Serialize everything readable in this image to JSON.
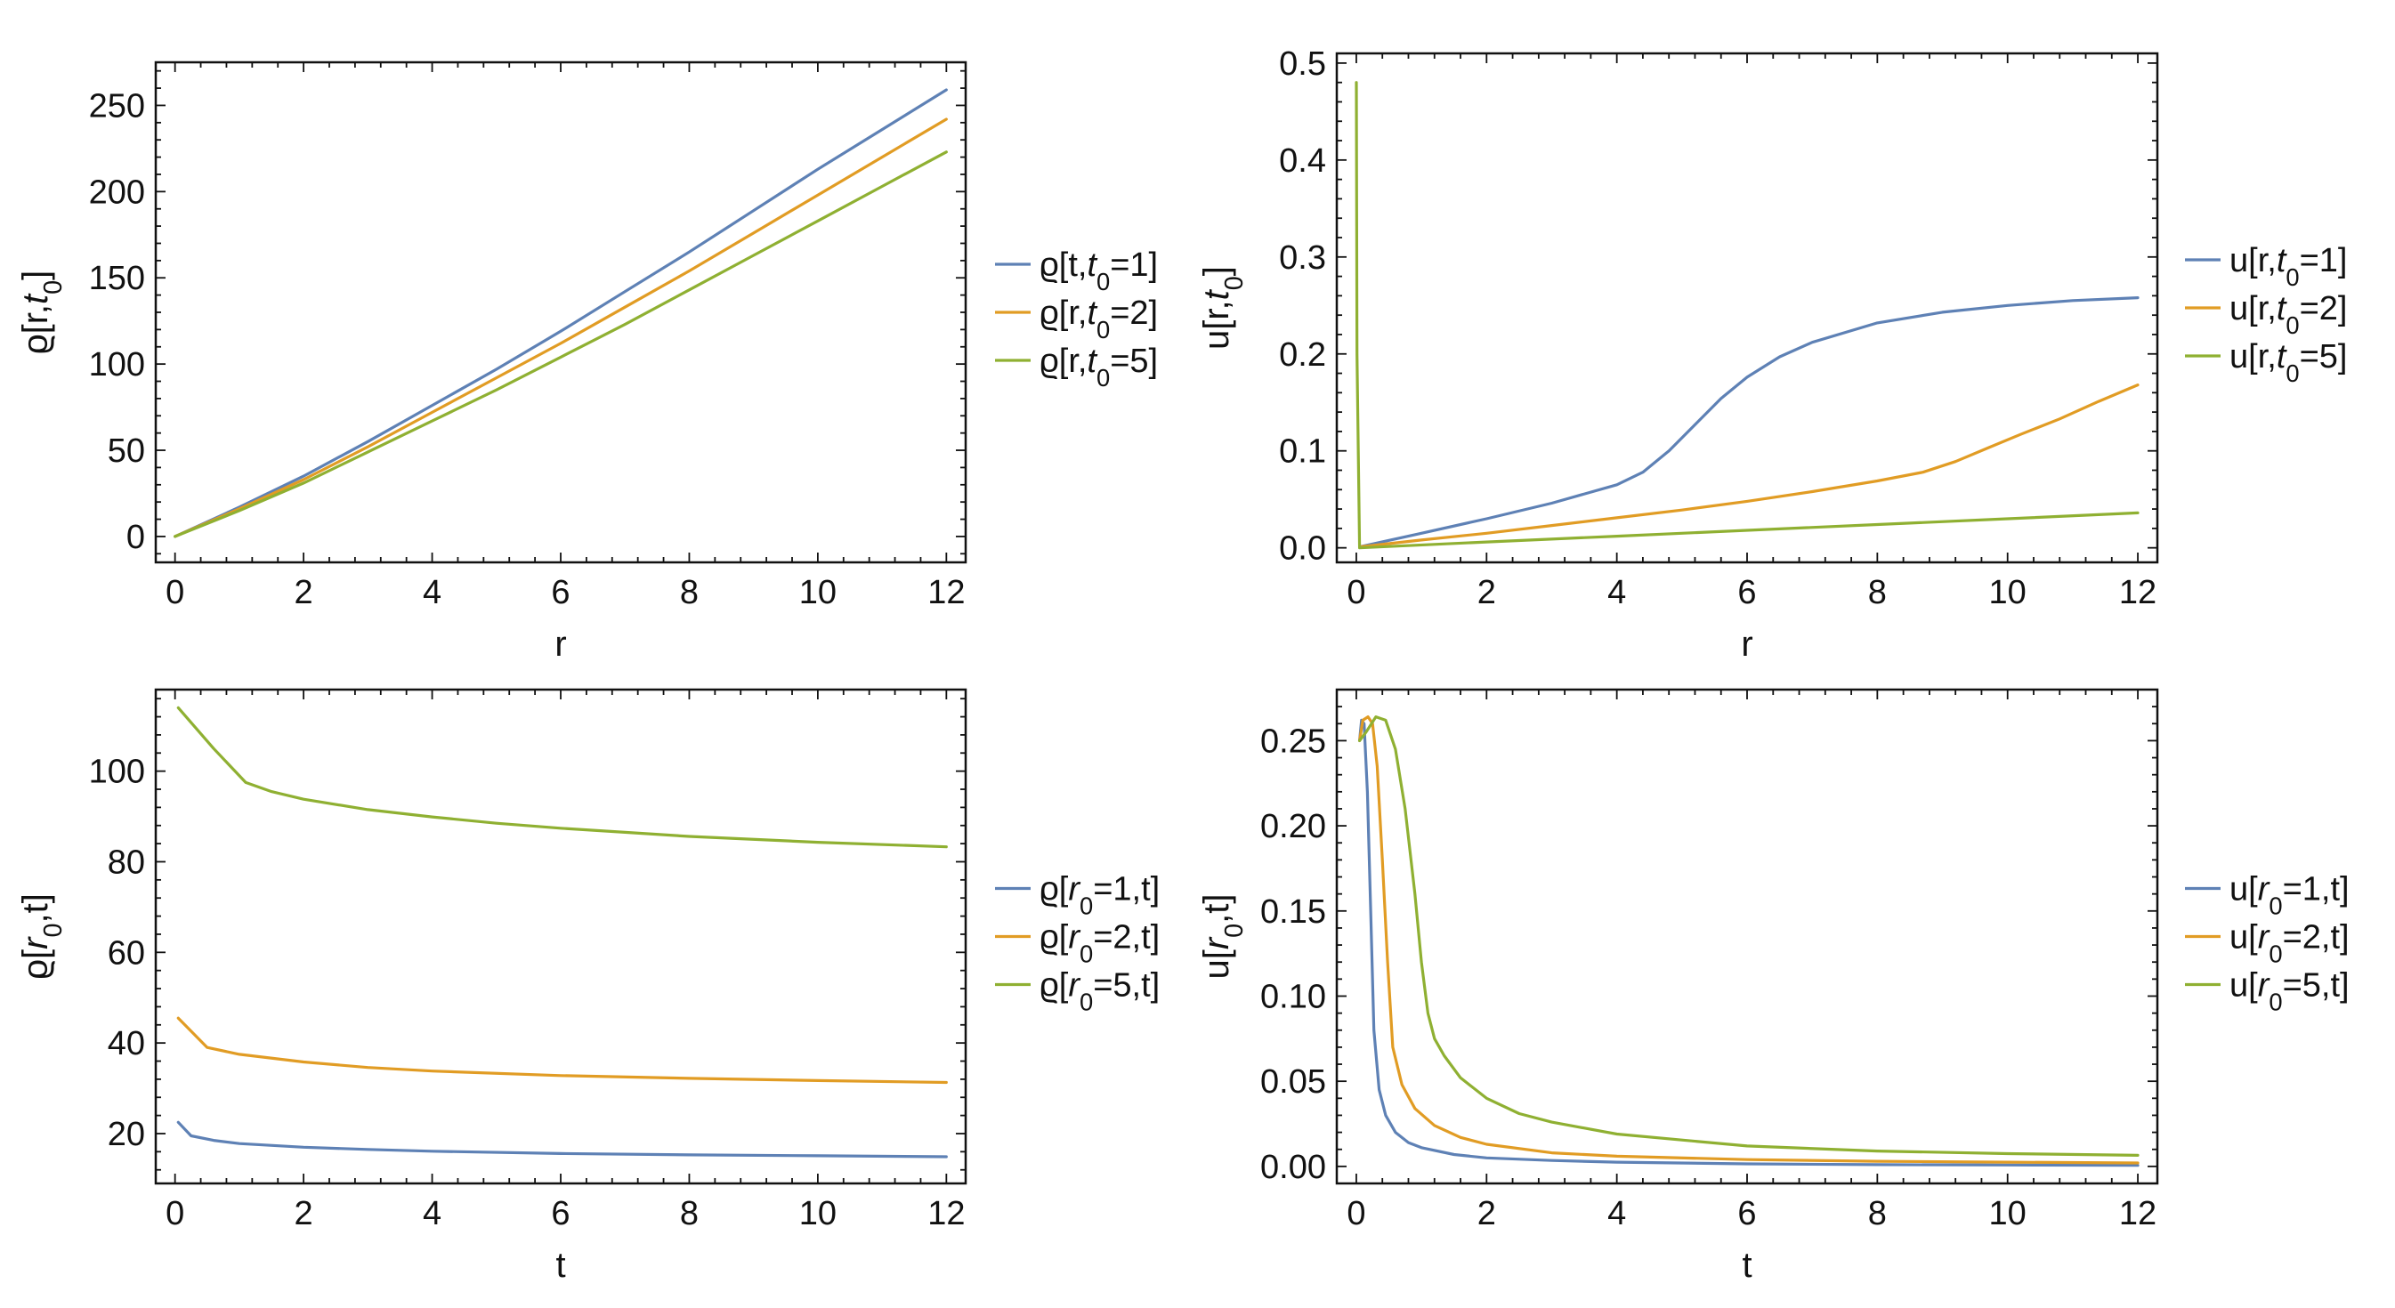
{
  "chart_data": [
    {
      "type": "line",
      "id": "rho-vs-r",
      "title": "",
      "xlabel": "r",
      "ylabel": {
        "base": "ϱ[r,",
        "var": "t",
        "sub": "0",
        "tail": "]"
      },
      "xlim": [
        -0.3,
        12.3
      ],
      "ylim": [
        -15,
        275
      ],
      "xticks": [
        0,
        2,
        4,
        6,
        8,
        10,
        12
      ],
      "xtick_labels": [
        "0",
        "2",
        "4",
        "6",
        "8",
        "10",
        "12"
      ],
      "yticks": [
        0,
        50,
        100,
        150,
        200,
        250
      ],
      "ytick_labels": [
        "0",
        "50",
        "100",
        "150",
        "200",
        "250"
      ],
      "legend": "right",
      "series": [
        {
          "name": "ϱ[t,t0=1]",
          "legend": {
            "pre": "ϱ[t,",
            "var": "t",
            "sub": "0",
            "post": "=1]"
          },
          "color": "#5E81B5",
          "x": [
            0,
            1,
            2,
            3,
            4,
            5,
            6,
            7,
            8,
            9,
            10,
            11,
            12
          ],
          "y": [
            0,
            17,
            35,
            55,
            76,
            97,
            119,
            142,
            165,
            189,
            213,
            236,
            259
          ]
        },
        {
          "name": "ϱ[r,t0=2]",
          "legend": {
            "pre": "ϱ[r,",
            "var": "t",
            "sub": "0",
            "post": "=2]"
          },
          "color": "#E19C24",
          "x": [
            0,
            1,
            2,
            3,
            4,
            5,
            6,
            7,
            8,
            9,
            10,
            11,
            12
          ],
          "y": [
            0,
            16,
            33,
            52,
            72,
            92,
            112,
            133,
            154,
            176,
            198,
            220,
            242
          ]
        },
        {
          "name": "ϱ[r,t0=5]",
          "legend": {
            "pre": "ϱ[r,",
            "var": "t",
            "sub": "0",
            "post": "=5]"
          },
          "color": "#8FB032",
          "x": [
            0,
            1,
            2,
            3,
            4,
            5,
            6,
            7,
            8,
            9,
            10,
            11,
            12
          ],
          "y": [
            0,
            15,
            31,
            49,
            67,
            85,
            104,
            123,
            143,
            163,
            183,
            203,
            223
          ]
        }
      ]
    },
    {
      "type": "line",
      "id": "u-vs-r",
      "title": "",
      "xlabel": "r",
      "ylabel": {
        "base": "u[r,",
        "var": "t",
        "sub": "0",
        "tail": "]"
      },
      "xlim": [
        -0.3,
        12.3
      ],
      "ylim": [
        -0.015,
        0.51
      ],
      "xticks": [
        0,
        2,
        4,
        6,
        8,
        10,
        12
      ],
      "xtick_labels": [
        "0",
        "2",
        "4",
        "6",
        "8",
        "10",
        "12"
      ],
      "yticks": [
        0,
        0.1,
        0.2,
        0.3,
        0.4,
        0.5
      ],
      "ytick_labels": [
        "0.0",
        "0.1",
        "0.2",
        "0.3",
        "0.4",
        "0.5"
      ],
      "legend": "right",
      "series": [
        {
          "name": "u[r,t0=1]",
          "legend": {
            "pre": "u[r,",
            "var": "t",
            "sub": "0",
            "post": "=1]"
          },
          "color": "#5E81B5",
          "x": [
            0.05,
            1,
            2,
            3,
            4,
            4.4,
            4.8,
            5.2,
            5.6,
            6,
            6.5,
            7,
            8,
            9,
            10,
            11,
            12
          ],
          "y": [
            0.001,
            0.015,
            0.03,
            0.046,
            0.065,
            0.078,
            0.1,
            0.127,
            0.154,
            0.176,
            0.197,
            0.212,
            0.232,
            0.243,
            0.25,
            0.255,
            0.258
          ]
        },
        {
          "name": "u[r,t0=2]",
          "legend": {
            "pre": "u[r,",
            "var": "t",
            "sub": "0",
            "post": "=2]"
          },
          "color": "#E19C24",
          "x": [
            0.05,
            1,
            2,
            3,
            4,
            5,
            6,
            7,
            8,
            8.7,
            9.2,
            9.7,
            10.2,
            10.8,
            11.4,
            12
          ],
          "y": [
            0.001,
            0.008,
            0.015,
            0.023,
            0.031,
            0.039,
            0.048,
            0.058,
            0.069,
            0.078,
            0.089,
            0.103,
            0.117,
            0.133,
            0.151,
            0.168
          ]
        },
        {
          "name": "u[r,t0=5]",
          "legend": {
            "pre": "u[r,",
            "var": "t",
            "sub": "0",
            "post": "=5]"
          },
          "color": "#8FB032",
          "x": [
            0.0,
            0.01,
            0.05,
            2,
            4,
            6,
            8,
            10,
            12
          ],
          "y": [
            0.48,
            0.2,
            0.0,
            0.006,
            0.012,
            0.018,
            0.024,
            0.03,
            0.036
          ]
        }
      ]
    },
    {
      "type": "line",
      "id": "rho-vs-t",
      "title": "",
      "xlabel": "t",
      "ylabel": {
        "base": "ϱ[",
        "var": "r",
        "sub": "0",
        "tail": ",t]"
      },
      "xlim": [
        -0.3,
        12.3
      ],
      "ylim": [
        9,
        118
      ],
      "xticks": [
        0,
        2,
        4,
        6,
        8,
        10,
        12
      ],
      "xtick_labels": [
        "0",
        "2",
        "4",
        "6",
        "8",
        "10",
        "12"
      ],
      "yticks": [
        20,
        40,
        60,
        80,
        100
      ],
      "ytick_labels": [
        "20",
        "40",
        "60",
        "80",
        "100"
      ],
      "legend": "right",
      "series": [
        {
          "name": "ϱ[r0=1,t]",
          "legend": {
            "pre": "ϱ[",
            "var": "r",
            "sub": "0",
            "post": "=1,t]"
          },
          "color": "#5E81B5",
          "x": [
            0.05,
            0.25,
            0.6,
            1,
            2,
            3,
            4,
            6,
            8,
            10,
            12
          ],
          "y": [
            22.5,
            19.5,
            18.5,
            17.8,
            17,
            16.5,
            16.1,
            15.6,
            15.3,
            15.1,
            14.9
          ]
        },
        {
          "name": "ϱ[r0=2,t]",
          "legend": {
            "pre": "ϱ[",
            "var": "r",
            "sub": "0",
            "post": "=2,t]"
          },
          "color": "#E19C24",
          "x": [
            0.05,
            0.5,
            1,
            2,
            3,
            4,
            6,
            8,
            10,
            12
          ],
          "y": [
            45.5,
            39,
            37.5,
            35.8,
            34.6,
            33.8,
            32.8,
            32.2,
            31.7,
            31.3
          ]
        },
        {
          "name": "ϱ[r0=5,t]",
          "legend": {
            "pre": "ϱ[",
            "var": "r",
            "sub": "0",
            "post": "=5,t]"
          },
          "color": "#8FB032",
          "x": [
            0.05,
            0.6,
            1.1,
            1.5,
            2,
            3,
            4,
            5,
            6,
            7,
            8,
            10,
            12
          ],
          "y": [
            114,
            105,
            97.5,
            95.5,
            93.8,
            91.5,
            89.9,
            88.5,
            87.4,
            86.5,
            85.6,
            84.3,
            83.3
          ]
        }
      ]
    },
    {
      "type": "line",
      "id": "u-vs-t",
      "title": "",
      "xlabel": "t",
      "ylabel": {
        "base": "u[",
        "var": "r",
        "sub": "0",
        "tail": ",t]"
      },
      "xlim": [
        -0.3,
        12.3
      ],
      "ylim": [
        -0.01,
        0.28
      ],
      "xticks": [
        0,
        2,
        4,
        6,
        8,
        10,
        12
      ],
      "xtick_labels": [
        "0",
        "2",
        "4",
        "6",
        "8",
        "10",
        "12"
      ],
      "yticks": [
        0,
        0.05,
        0.1,
        0.15,
        0.2,
        0.25
      ],
      "ytick_labels": [
        "0.00",
        "0.05",
        "0.10",
        "0.15",
        "0.20",
        "0.25"
      ],
      "legend": "right",
      "series": [
        {
          "name": "u[r0=1,t]",
          "legend": {
            "pre": "u[",
            "var": "r",
            "sub": "0",
            "post": "=1,t]"
          },
          "color": "#5E81B5",
          "x": [
            0.05,
            0.08,
            0.12,
            0.17,
            0.22,
            0.27,
            0.35,
            0.45,
            0.6,
            0.8,
            1,
            1.5,
            2,
            3,
            4,
            6,
            8,
            10,
            12
          ],
          "y": [
            0.25,
            0.262,
            0.26,
            0.22,
            0.15,
            0.08,
            0.045,
            0.03,
            0.02,
            0.014,
            0.011,
            0.007,
            0.005,
            0.0035,
            0.0025,
            0.0015,
            0.001,
            0.0008,
            0.0006
          ]
        },
        {
          "name": "u[r0=2,t]",
          "legend": {
            "pre": "u[",
            "var": "r",
            "sub": "0",
            "post": "=2,t]"
          },
          "color": "#E19C24",
          "x": [
            0.05,
            0.1,
            0.18,
            0.25,
            0.32,
            0.4,
            0.48,
            0.56,
            0.7,
            0.9,
            1.2,
            1.6,
            2,
            3,
            4,
            6,
            8,
            10,
            12
          ],
          "y": [
            0.25,
            0.262,
            0.264,
            0.26,
            0.235,
            0.18,
            0.12,
            0.07,
            0.048,
            0.034,
            0.024,
            0.017,
            0.013,
            0.008,
            0.006,
            0.004,
            0.003,
            0.0025,
            0.002
          ]
        },
        {
          "name": "u[r0=5,t]",
          "legend": {
            "pre": "u[",
            "var": "r",
            "sub": "0",
            "post": "=5,t]"
          },
          "color": "#8FB032",
          "x": [
            0.05,
            0.15,
            0.3,
            0.45,
            0.6,
            0.75,
            0.9,
            1.0,
            1.1,
            1.2,
            1.35,
            1.6,
            2,
            2.5,
            3,
            4,
            6,
            8,
            10,
            12
          ],
          "y": [
            0.25,
            0.255,
            0.264,
            0.262,
            0.245,
            0.21,
            0.16,
            0.12,
            0.09,
            0.075,
            0.065,
            0.052,
            0.04,
            0.031,
            0.026,
            0.019,
            0.012,
            0.009,
            0.0075,
            0.0065
          ]
        }
      ]
    }
  ]
}
